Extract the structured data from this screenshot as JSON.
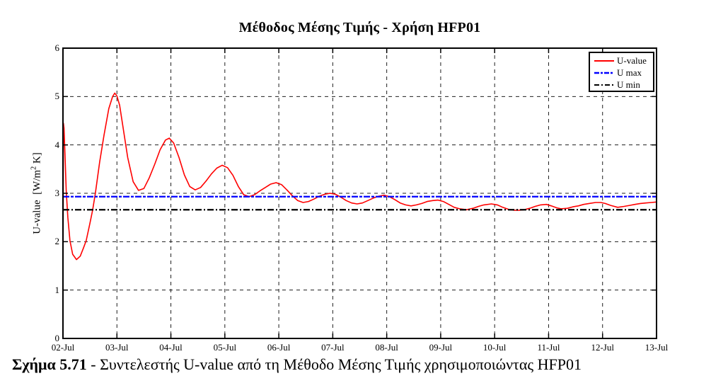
{
  "chart_data": {
    "type": "line",
    "title": "Μέθοδος Μέσης Τιμής - Χρήση HFP01",
    "xlabel": "",
    "ylabel": "U-value  [W/m2 K]",
    "ylabel_parts": {
      "prefix": "U-value  [W/m",
      "sup": "2",
      "suffix": " K]"
    },
    "x_range": [
      2,
      13
    ],
    "ylim": [
      0,
      6
    ],
    "grid": true,
    "legend_position": "top-right",
    "x_tick_labels": [
      "02-Jul",
      "03-Jul",
      "04-Jul",
      "05-Jul",
      "06-Jul",
      "07-Jul",
      "08-Jul",
      "09-Jul",
      "10-Jul",
      "11-Jul",
      "12-Jul",
      "13-Jul"
    ],
    "y_tick_labels": [
      "0",
      "1",
      "2",
      "3",
      "4",
      "5",
      "6"
    ],
    "series": [
      {
        "name": "U-value",
        "kind": "curve",
        "color": "#ff0000",
        "line_style": "solid",
        "points": [
          [
            2.0,
            0.05
          ],
          [
            2.008,
            4.45
          ],
          [
            2.02,
            4.35
          ],
          [
            2.04,
            3.7
          ],
          [
            2.06,
            3.05
          ],
          [
            2.09,
            2.5
          ],
          [
            2.13,
            2.02
          ],
          [
            2.18,
            1.74
          ],
          [
            2.25,
            1.63
          ],
          [
            2.32,
            1.7
          ],
          [
            2.38,
            1.87
          ],
          [
            2.43,
            2.02
          ],
          [
            2.5,
            2.38
          ],
          [
            2.55,
            2.65
          ],
          [
            2.6,
            3.0
          ],
          [
            2.68,
            3.65
          ],
          [
            2.76,
            4.2
          ],
          [
            2.85,
            4.75
          ],
          [
            2.92,
            5.0
          ],
          [
            2.96,
            5.07
          ],
          [
            3.0,
            5.01
          ],
          [
            3.05,
            4.82
          ],
          [
            3.1,
            4.46
          ],
          [
            3.2,
            3.74
          ],
          [
            3.3,
            3.24
          ],
          [
            3.4,
            3.06
          ],
          [
            3.5,
            3.1
          ],
          [
            3.6,
            3.32
          ],
          [
            3.7,
            3.6
          ],
          [
            3.8,
            3.9
          ],
          [
            3.9,
            4.1
          ],
          [
            3.97,
            4.14
          ],
          [
            4.05,
            4.04
          ],
          [
            4.15,
            3.74
          ],
          [
            4.25,
            3.38
          ],
          [
            4.35,
            3.14
          ],
          [
            4.45,
            3.07
          ],
          [
            4.55,
            3.12
          ],
          [
            4.65,
            3.25
          ],
          [
            4.75,
            3.4
          ],
          [
            4.85,
            3.52
          ],
          [
            4.95,
            3.58
          ],
          [
            5.05,
            3.53
          ],
          [
            5.15,
            3.37
          ],
          [
            5.25,
            3.14
          ],
          [
            5.35,
            2.97
          ],
          [
            5.45,
            2.93
          ],
          [
            5.55,
            2.97
          ],
          [
            5.65,
            3.05
          ],
          [
            5.75,
            3.12
          ],
          [
            5.85,
            3.19
          ],
          [
            5.95,
            3.22
          ],
          [
            6.05,
            3.18
          ],
          [
            6.15,
            3.07
          ],
          [
            6.25,
            2.95
          ],
          [
            6.35,
            2.85
          ],
          [
            6.45,
            2.81
          ],
          [
            6.55,
            2.83
          ],
          [
            6.65,
            2.88
          ],
          [
            6.75,
            2.94
          ],
          [
            6.85,
            2.98
          ],
          [
            6.95,
            3.0
          ],
          [
            7.05,
            2.98
          ],
          [
            7.15,
            2.92
          ],
          [
            7.25,
            2.85
          ],
          [
            7.35,
            2.8
          ],
          [
            7.45,
            2.78
          ],
          [
            7.55,
            2.8
          ],
          [
            7.65,
            2.85
          ],
          [
            7.75,
            2.9
          ],
          [
            7.85,
            2.94
          ],
          [
            7.95,
            2.96
          ],
          [
            8.05,
            2.93
          ],
          [
            8.15,
            2.87
          ],
          [
            8.25,
            2.8
          ],
          [
            8.35,
            2.76
          ],
          [
            8.45,
            2.74
          ],
          [
            8.55,
            2.76
          ],
          [
            8.65,
            2.79
          ],
          [
            8.75,
            2.83
          ],
          [
            8.85,
            2.85
          ],
          [
            8.95,
            2.86
          ],
          [
            9.05,
            2.83
          ],
          [
            9.15,
            2.77
          ],
          [
            9.25,
            2.71
          ],
          [
            9.35,
            2.68
          ],
          [
            9.48,
            2.66
          ],
          [
            9.6,
            2.69
          ],
          [
            9.7,
            2.73
          ],
          [
            9.8,
            2.76
          ],
          [
            9.94,
            2.78
          ],
          [
            10.05,
            2.76
          ],
          [
            10.15,
            2.71
          ],
          [
            10.25,
            2.67
          ],
          [
            10.36,
            2.65
          ],
          [
            10.45,
            2.65
          ],
          [
            10.55,
            2.66
          ],
          [
            10.65,
            2.69
          ],
          [
            10.75,
            2.73
          ],
          [
            10.85,
            2.76
          ],
          [
            10.96,
            2.77
          ],
          [
            11.05,
            2.74
          ],
          [
            11.15,
            2.7
          ],
          [
            11.23,
            2.68
          ],
          [
            11.35,
            2.69
          ],
          [
            11.45,
            2.72
          ],
          [
            11.55,
            2.74
          ],
          [
            11.65,
            2.77
          ],
          [
            11.75,
            2.79
          ],
          [
            11.87,
            2.81
          ],
          [
            11.97,
            2.81
          ],
          [
            12.05,
            2.79
          ],
          [
            12.15,
            2.75
          ],
          [
            12.28,
            2.71
          ],
          [
            12.4,
            2.73
          ],
          [
            12.5,
            2.75
          ],
          [
            12.6,
            2.77
          ],
          [
            12.7,
            2.79
          ],
          [
            12.8,
            2.8
          ],
          [
            12.9,
            2.81
          ],
          [
            13.0,
            2.82
          ]
        ]
      },
      {
        "name": "U max",
        "kind": "hline",
        "color": "#0000ff",
        "line_style": "dashed",
        "value": 2.93
      },
      {
        "name": "U min",
        "kind": "hline",
        "color": "#000000",
        "line_style": "dashdot",
        "value": 2.66
      }
    ]
  },
  "caption": {
    "figure_label": "Σχήμα 5.71",
    "rest": " - Συντελεστής U-value από τη Μέθοδο Μέσης Τιμής χρησιμοποιώντας HFP01"
  }
}
